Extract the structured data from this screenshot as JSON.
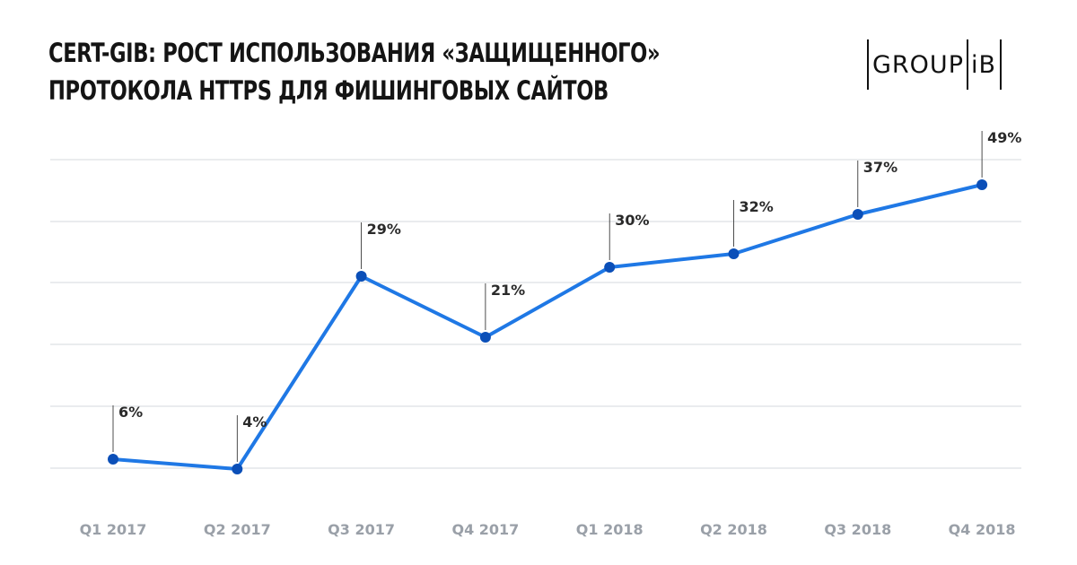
{
  "title_line1": "CERT-GIB: РОСТ ИСПОЛЬЗОВАНИЯ «ЗАЩИЩЕННОГО»",
  "title_line2": "ПРОТОКОЛА HTTPS ДЛЯ ФИШИНГОВЫХ САЙТОВ",
  "logo": {
    "left": "GROUP",
    "right": "iB"
  },
  "colors": {
    "line": "#1f78e5",
    "marker": "#0b4fb8",
    "grid": "#e3e5e8",
    "leader": "#222222"
  },
  "chart_data": {
    "type": "line",
    "title": "CERT-GIB: РОСТ ИСПОЛЬЗОВАНИЯ «ЗАЩИЩЕННОГО» ПРОТОКОЛА HTTPS ДЛЯ ФИШИНГОВЫХ САЙТОВ",
    "categories": [
      "Q1 2017",
      "Q2 2017",
      "Q3 2017",
      "Q4 2017",
      "Q1 2018",
      "Q2 2018",
      "Q3 2018",
      "Q4 2018"
    ],
    "values": [
      6,
      4,
      29,
      21,
      30,
      32,
      37,
      49
    ],
    "labels": [
      "6%",
      "4%",
      "29%",
      "21%",
      "30%",
      "32%",
      "37%",
      "49%"
    ],
    "xlabel": "",
    "ylabel": "",
    "grid": true,
    "legend": "none"
  }
}
